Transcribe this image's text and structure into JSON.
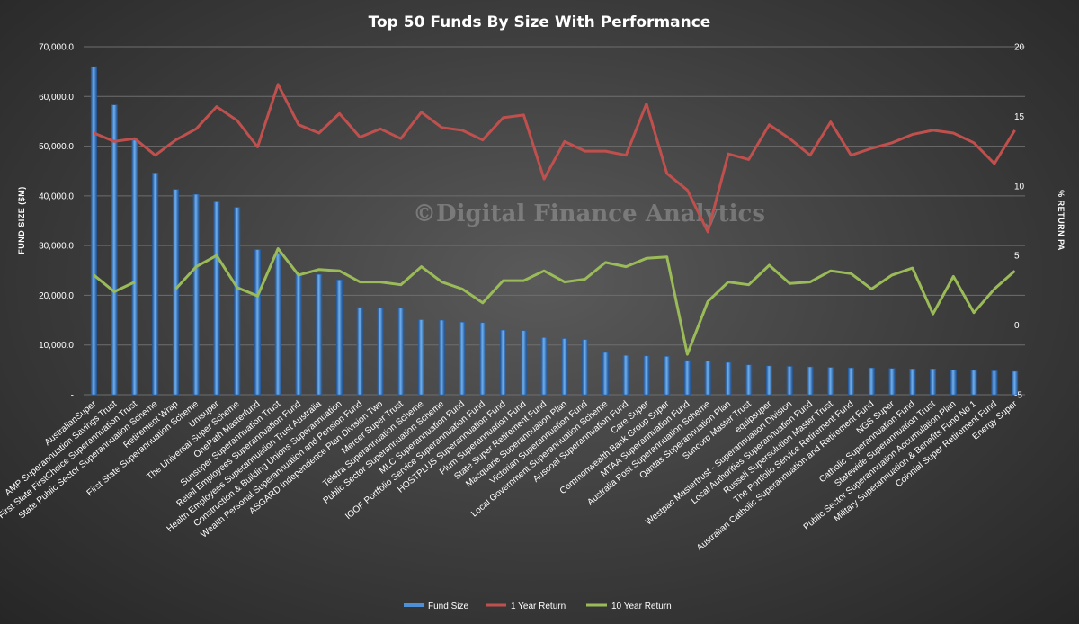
{
  "chart_data": {
    "type": "bar+line",
    "title": "Top 50 Funds By Size With Performance",
    "ylabel": "FUND SIZE ($M)",
    "y2label": "% RETURN PA",
    "ylim": [
      0,
      70000
    ],
    "y2lim": [
      -5,
      20
    ],
    "yticks": [
      "-",
      "10,000.0",
      "20,000.0",
      "30,000.0",
      "40,000.0",
      "50,000.0",
      "60,000.0",
      "70,000.0"
    ],
    "y2ticks": [
      "-5",
      "0",
      "5",
      "10",
      "15",
      "20"
    ],
    "watermark": "©Digital Finance Analytics",
    "legend_position": "bottom",
    "colors": {
      "bar": "#4f8fd6",
      "one_year": "#c0504d",
      "ten_year": "#9bbb59"
    },
    "categories": [
      "AustralianSuper",
      "AMP Superannuation Savings Trust",
      "First State FirstChoice Superannuation Trust",
      "State Public Sector Superannuation Scheme",
      "Retirement Wrap",
      "First State Superannuation Scheme",
      "Unisuper",
      "The Universal Super Scheme",
      "OnePath Masterfund",
      "Sunsuper Superannuation Trust",
      "Retail Employees Superannuation Fund",
      "Health Employees Superannuation Trust Australia",
      "Construction & Building Unions Superannuation",
      "Wealth Personal Superannuation and Pension Fund",
      "ASGARD Independence Plan Division Two",
      "Mercer Super Trust",
      "Telstra Superannuation Scheme",
      "Public Sector Superannuation Scheme",
      "MLC Superannuation Fund",
      "IOOF Portfolio Service Superannuation Fund",
      "HOSTPLUS Superannuation Fund",
      "Plum Superannuation Fund",
      "State Super Retirement Fund",
      "Macquarie Superannuation Plan",
      "Victorian Superannuation Fund",
      "Local Government Superannuation Scheme",
      "Auscoal Superannuation Fund",
      "Care Super",
      "Commonwealth Bank Group Super",
      "MTAA Superannuation Fund",
      "Australia Post Superannuation Scheme",
      "Qantas Superannuation Plan",
      "Suncorp Master Trust",
      "equipsuper",
      "Westpac Mastertrust - Superannuation Division",
      "Local Authorities Superannuation Fund",
      "Russell Supersolution Master Trust",
      "The Portfolio Service Retirement Fund",
      "Australian Catholic Superannuation and Retirement Fund",
      "NGS Super",
      "Catholic Superannuation Fund",
      "Statewide Superannuation Trust",
      "Public Sector Superannuation Accumulation Plan",
      "Military Superannuation & Benefits Fund No 1",
      "Colonial Super Retirement Fund",
      "Energy Super"
    ],
    "series": [
      {
        "name": "Fund Size",
        "type": "bar",
        "axis": "left",
        "values": [
          66000,
          58300,
          51200,
          44600,
          41300,
          40300,
          38800,
          37700,
          29200,
          28500,
          24300,
          24200,
          23100,
          17600,
          17400,
          17400,
          15100,
          15000,
          14600,
          14500,
          13000,
          12900,
          11500,
          11300,
          11100,
          8500,
          7900,
          7800,
          7700,
          6900,
          6800,
          6500,
          6000,
          5800,
          5700,
          5600,
          5500,
          5400,
          5400,
          5300,
          5200,
          5200,
          5000,
          4900,
          4800,
          4700
        ]
      },
      {
        "name": "1 Year Return",
        "type": "line",
        "axis": "right",
        "values": [
          13.8,
          13.2,
          13.4,
          12.2,
          13.3,
          14.1,
          15.7,
          14.7,
          12.8,
          17.3,
          14.4,
          13.8,
          15.2,
          13.5,
          14.1,
          13.4,
          15.3,
          14.2,
          14.0,
          13.3,
          14.9,
          15.1,
          10.5,
          13.2,
          12.5,
          12.5,
          12.2,
          15.9,
          10.9,
          9.7,
          6.7,
          12.3,
          11.9,
          14.4,
          13.4,
          12.2,
          14.6,
          12.2,
          12.7,
          13.1,
          13.7,
          14.0,
          13.8,
          13.1,
          11.6,
          14.0
        ]
      },
      {
        "name": "10 Year Return",
        "type": "line",
        "axis": "right",
        "values": [
          3.6,
          2.4,
          3.1,
          null,
          2.6,
          4.2,
          5.0,
          2.7,
          2.1,
          5.5,
          3.6,
          4.0,
          3.9,
          3.1,
          3.1,
          2.9,
          4.2,
          3.1,
          2.6,
          1.6,
          3.2,
          3.2,
          3.9,
          3.1,
          3.3,
          4.5,
          4.2,
          4.8,
          4.9,
          -2.1,
          1.7,
          3.1,
          2.9,
          4.3,
          3.0,
          3.1,
          3.9,
          3.7,
          2.6,
          3.6,
          4.1,
          0.8,
          3.5,
          0.9,
          2.6,
          3.9
        ]
      }
    ]
  }
}
